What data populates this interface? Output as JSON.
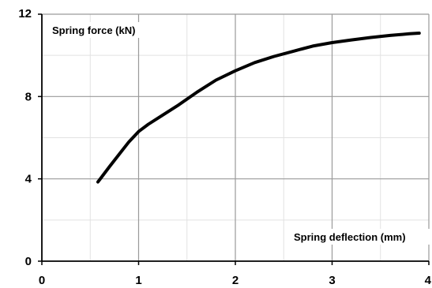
{
  "chart_data": {
    "type": "line",
    "title": "",
    "ylabel": "Spring force (kN)",
    "xlabel": "Spring deflection (mm)",
    "xlim": [
      0,
      4
    ],
    "ylim": [
      0,
      12
    ],
    "x_major_ticks": [
      0,
      1,
      2,
      3,
      4
    ],
    "y_major_ticks": [
      0,
      4,
      8,
      12
    ],
    "x_tick_labels": [
      "0",
      "1",
      "2",
      "3",
      "4"
    ],
    "y_tick_labels": [
      "0",
      "4",
      "8",
      "12"
    ],
    "x_minor_step": 0.5,
    "y_minor_step": 2,
    "grid": true,
    "series": [
      {
        "x": [
          0.58,
          0.7,
          0.8,
          0.9,
          1.0,
          1.1,
          1.25,
          1.4,
          1.6,
          1.8,
          2.0,
          2.2,
          2.4,
          2.6,
          2.8,
          3.0,
          3.2,
          3.4,
          3.6,
          3.8,
          3.9
        ],
        "y": [
          3.85,
          4.6,
          5.2,
          5.8,
          6.3,
          6.65,
          7.1,
          7.55,
          8.2,
          8.8,
          9.25,
          9.65,
          9.95,
          10.2,
          10.45,
          10.62,
          10.75,
          10.87,
          10.97,
          11.05,
          11.08
        ]
      }
    ],
    "line_color": "#000000"
  }
}
